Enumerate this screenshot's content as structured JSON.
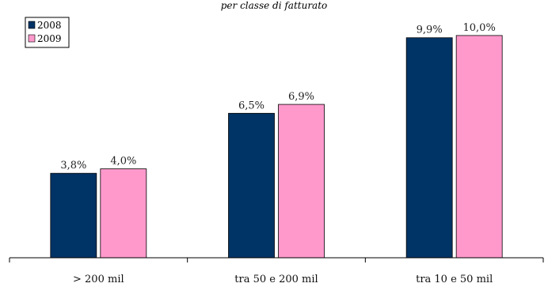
{
  "chart_data": {
    "type": "bar",
    "subtitle": "per classe di fatturato",
    "categories": [
      "> 200 mil",
      "tra 50 e 200 mil",
      "tra 10 e 50 mil"
    ],
    "series": [
      {
        "name": "2008",
        "values": [
          3.8,
          6.5,
          9.9
        ],
        "labels": [
          "3,8%",
          "6,5%",
          "9,9%"
        ],
        "color": "#003366"
      },
      {
        "name": "2009",
        "values": [
          4.0,
          6.9,
          10.0
        ],
        "labels": [
          "4,0%",
          "6,9%",
          "10,0%"
        ],
        "color": "#FF99CC"
      }
    ],
    "ylim": [
      0,
      11.1
    ],
    "grid": false,
    "legend": "top-left"
  }
}
